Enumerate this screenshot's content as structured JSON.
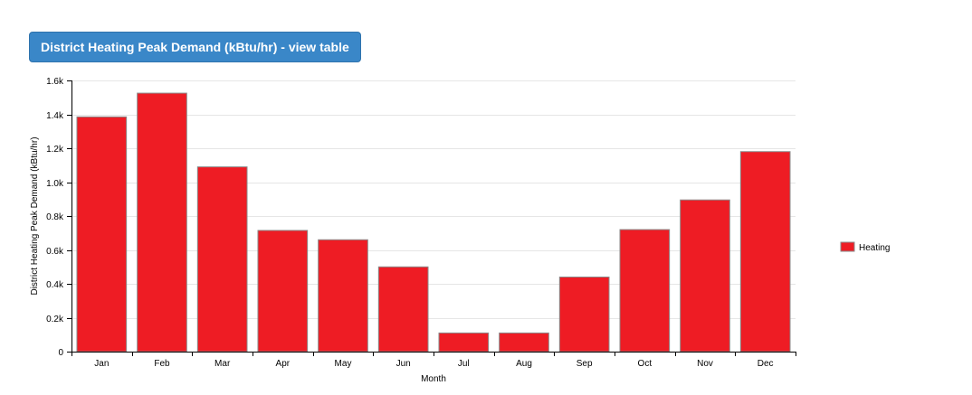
{
  "header": {
    "title_button_label": "District Heating Peak Demand (kBtu/hr) - view table"
  },
  "colors": {
    "bar_fill": "#ee1c24",
    "bar_stroke": "#8a8a8a",
    "title_button": "#3a87c8",
    "grid": "#e6e6e6"
  },
  "chart_data": {
    "type": "bar",
    "categories": [
      "Jan",
      "Feb",
      "Mar",
      "Apr",
      "May",
      "Jun",
      "Jul",
      "Aug",
      "Sep",
      "Oct",
      "Nov",
      "Dec"
    ],
    "series": [
      {
        "name": "Heating",
        "values": [
          1385,
          1525,
          1090,
          715,
          660,
          500,
          110,
          110,
          440,
          720,
          895,
          1180
        ]
      }
    ],
    "title": "",
    "xlabel": "Month",
    "ylabel": "District Heating Peak Demand (kBtu/hr)",
    "ylim": [
      0,
      1600
    ],
    "yticks": [
      {
        "value": 0,
        "label": "0"
      },
      {
        "value": 200,
        "label": "0.2k"
      },
      {
        "value": 400,
        "label": "0.4k"
      },
      {
        "value": 600,
        "label": "0.6k"
      },
      {
        "value": 800,
        "label": "0.8k"
      },
      {
        "value": 1000,
        "label": "1.0k"
      },
      {
        "value": 1200,
        "label": "1.2k"
      },
      {
        "value": 1400,
        "label": "1.4k"
      },
      {
        "value": 1600,
        "label": "1.6k"
      }
    ],
    "grid": true,
    "legend_position": "right"
  }
}
